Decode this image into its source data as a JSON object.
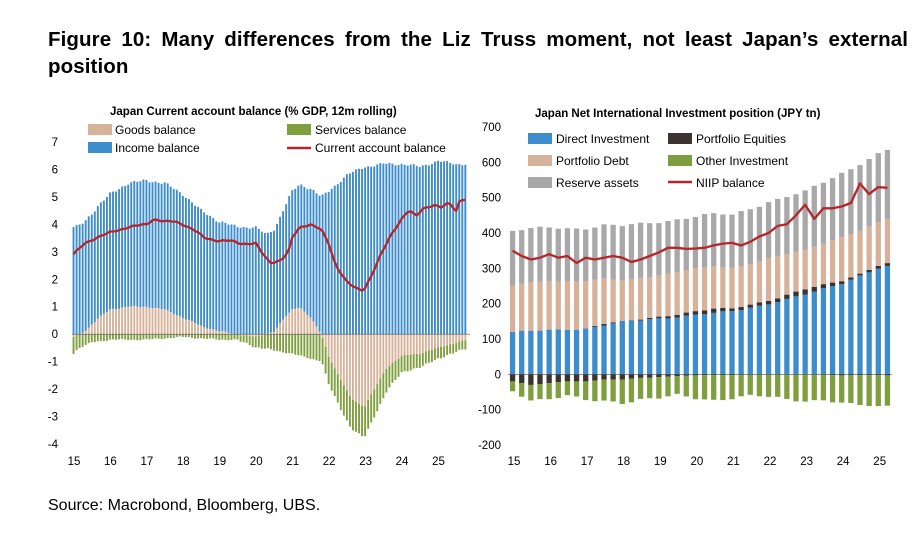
{
  "figure": {
    "title": "Figure 10: Many differences from the Liz Truss moment, not least Japan’s external position",
    "source": "Source: Macrobond, Bloomberg, UBS."
  },
  "chart_data": [
    {
      "type": "bar",
      "subtype": "stacked bar + line",
      "title": "Japan Current account balance (% GDP, 12m rolling)",
      "frequency": "monthly",
      "x_start": "2015-01",
      "x_end": "2025-10",
      "x_ticks": [
        "15",
        "16",
        "17",
        "18",
        "19",
        "20",
        "21",
        "22",
        "23",
        "24",
        "25"
      ],
      "ylim": [
        -4,
        7
      ],
      "y_ticks": [
        "-4",
        "-3",
        "-2",
        "-1",
        "0",
        "1",
        "2",
        "3",
        "4",
        "5",
        "6",
        "7"
      ],
      "legend": [
        "Goods balance",
        "Services balance",
        "Income balance",
        "Current account balance"
      ],
      "colors": {
        "goods": "#d7b29a",
        "services": "#7f9f3f",
        "income": "#3d8ccc",
        "current": "#b5252a"
      },
      "series_anchors": {
        "income": [
          [
            2015.0,
            3.9
          ],
          [
            2016.0,
            4.2
          ],
          [
            2016.5,
            4.5
          ],
          [
            2017.0,
            4.6
          ],
          [
            2017.5,
            4.6
          ],
          [
            2018.0,
            4.5
          ],
          [
            2018.5,
            4.2
          ],
          [
            2019.0,
            4.0
          ],
          [
            2019.5,
            3.9
          ],
          [
            2020.0,
            3.9
          ],
          [
            2020.3,
            3.6
          ],
          [
            2020.6,
            3.8
          ],
          [
            2021.0,
            4.3
          ],
          [
            2021.5,
            4.7
          ],
          [
            2022.0,
            5.2
          ],
          [
            2022.5,
            5.8
          ],
          [
            2023.0,
            6.1
          ],
          [
            2023.5,
            6.2
          ],
          [
            2024.0,
            6.2
          ],
          [
            2024.5,
            6.1
          ],
          [
            2025.0,
            6.3
          ],
          [
            2025.5,
            6.2
          ],
          [
            2025.83,
            6.2
          ]
        ],
        "goods": [
          [
            2015.0,
            -0.1
          ],
          [
            2015.3,
            0.1
          ],
          [
            2015.7,
            0.6
          ],
          [
            2016.0,
            0.9
          ],
          [
            2016.5,
            1.0
          ],
          [
            2017.0,
            1.0
          ],
          [
            2017.5,
            0.9
          ],
          [
            2018.0,
            0.6
          ],
          [
            2018.5,
            0.3
          ],
          [
            2019.0,
            0.1
          ],
          [
            2019.5,
            0.0
          ],
          [
            2020.0,
            -0.1
          ],
          [
            2020.5,
            0.1
          ],
          [
            2020.8,
            0.6
          ],
          [
            2021.0,
            0.9
          ],
          [
            2021.2,
            1.0
          ],
          [
            2021.5,
            0.6
          ],
          [
            2021.8,
            0.0
          ],
          [
            2022.0,
            -0.8
          ],
          [
            2022.3,
            -1.6
          ],
          [
            2022.6,
            -2.3
          ],
          [
            2022.9,
            -2.6
          ],
          [
            2023.0,
            -2.6
          ],
          [
            2023.3,
            -1.9
          ],
          [
            2023.6,
            -1.2
          ],
          [
            2024.0,
            -0.8
          ],
          [
            2024.5,
            -0.7
          ],
          [
            2025.0,
            -0.5
          ],
          [
            2025.5,
            -0.3
          ],
          [
            2025.83,
            -0.2
          ]
        ],
        "services": [
          [
            2015.0,
            -0.6
          ],
          [
            2015.5,
            -0.3
          ],
          [
            2016.0,
            -0.2
          ],
          [
            2017.0,
            -0.2
          ],
          [
            2018.0,
            -0.1
          ],
          [
            2019.0,
            -0.2
          ],
          [
            2019.5,
            -0.2
          ],
          [
            2020.0,
            -0.4
          ],
          [
            2020.5,
            -0.6
          ],
          [
            2021.0,
            -0.7
          ],
          [
            2021.5,
            -0.9
          ],
          [
            2022.0,
            -1.0
          ],
          [
            2022.5,
            -1.1
          ],
          [
            2023.0,
            -1.1
          ],
          [
            2023.5,
            -0.9
          ],
          [
            2024.0,
            -0.6
          ],
          [
            2024.5,
            -0.5
          ],
          [
            2025.0,
            -0.4
          ],
          [
            2025.83,
            -0.3
          ]
        ],
        "current": [
          [
            2015.0,
            2.9
          ],
          [
            2015.3,
            3.3
          ],
          [
            2015.6,
            3.5
          ],
          [
            2016.0,
            3.7
          ],
          [
            2016.5,
            3.9
          ],
          [
            2017.0,
            4.0
          ],
          [
            2017.2,
            4.2
          ],
          [
            2017.5,
            4.1
          ],
          [
            2017.8,
            4.1
          ],
          [
            2018.0,
            4.0
          ],
          [
            2018.3,
            3.8
          ],
          [
            2018.6,
            3.5
          ],
          [
            2019.0,
            3.4
          ],
          [
            2019.3,
            3.4
          ],
          [
            2019.6,
            3.3
          ],
          [
            2020.0,
            3.3
          ],
          [
            2020.2,
            2.9
          ],
          [
            2020.4,
            2.6
          ],
          [
            2020.7,
            2.7
          ],
          [
            2020.9,
            3.0
          ],
          [
            2021.0,
            3.5
          ],
          [
            2021.2,
            3.9
          ],
          [
            2021.5,
            4.0
          ],
          [
            2021.8,
            3.8
          ],
          [
            2022.0,
            3.3
          ],
          [
            2022.2,
            2.5
          ],
          [
            2022.5,
            1.9
          ],
          [
            2022.7,
            1.7
          ],
          [
            2022.9,
            1.6
          ],
          [
            2023.0,
            1.7
          ],
          [
            2023.2,
            2.2
          ],
          [
            2023.4,
            2.8
          ],
          [
            2023.7,
            3.6
          ],
          [
            2024.0,
            4.2
          ],
          [
            2024.2,
            4.5
          ],
          [
            2024.4,
            4.3
          ],
          [
            2024.6,
            4.6
          ],
          [
            2024.9,
            4.7
          ],
          [
            2025.1,
            4.6
          ],
          [
            2025.3,
            4.8
          ],
          [
            2025.5,
            4.5
          ],
          [
            2025.6,
            4.9
          ],
          [
            2025.83,
            4.9
          ]
        ]
      }
    },
    {
      "type": "bar",
      "subtype": "stacked bar + line",
      "title": "Japan Net International Investment position (JPY tn)",
      "frequency": "quarterly",
      "x_start": "2015-Q1",
      "x_end": "2025-Q2",
      "x_ticks": [
        "15",
        "16",
        "17",
        "18",
        "19",
        "20",
        "21",
        "22",
        "23",
        "24",
        "25"
      ],
      "ylim": [
        -200,
        700
      ],
      "y_ticks": [
        "-200",
        "-100",
        "0",
        "100",
        "200",
        "300",
        "400",
        "500",
        "600",
        "700"
      ],
      "legend": [
        "Direct Investment",
        "Portfolio Equities",
        "Portfolio Debt",
        "Other Investment",
        "Reserve assets",
        "NIIP balance"
      ],
      "colors": {
        "direct": "#3d8ccc",
        "equities": "#3b3330",
        "debt": "#d7b29a",
        "other": "#7f9f3f",
        "reserve": "#a8a8a8",
        "niip": "#b5252a"
      },
      "series_anchors": {
        "direct": [
          [
            2015.0,
            120
          ],
          [
            2016.0,
            125
          ],
          [
            2017.0,
            130
          ],
          [
            2018.0,
            148
          ],
          [
            2019.0,
            158
          ],
          [
            2020.0,
            168
          ],
          [
            2021.0,
            178
          ],
          [
            2022.0,
            200
          ],
          [
            2023.0,
            225
          ],
          [
            2024.0,
            258
          ],
          [
            2024.5,
            280
          ],
          [
            2025.0,
            300
          ],
          [
            2025.25,
            305
          ]
        ],
        "equities_pos": [
          [
            2015.0,
            0
          ],
          [
            2016.0,
            0
          ],
          [
            2017.0,
            0
          ],
          [
            2017.5,
            5
          ],
          [
            2018.0,
            0
          ],
          [
            2019.0,
            5
          ],
          [
            2019.5,
            8
          ],
          [
            2020.0,
            10
          ],
          [
            2020.5,
            12
          ],
          [
            2021.0,
            8
          ],
          [
            2022.0,
            10
          ],
          [
            2022.5,
            12
          ],
          [
            2023.0,
            15
          ],
          [
            2024.0,
            8
          ],
          [
            2024.5,
            5
          ],
          [
            2025.0,
            8
          ],
          [
            2025.25,
            8
          ]
        ],
        "equities_neg": [
          [
            2015.0,
            -20
          ],
          [
            2015.5,
            -30
          ],
          [
            2016.0,
            -25
          ],
          [
            2016.5,
            -20
          ],
          [
            2017.0,
            -20
          ],
          [
            2017.5,
            -15
          ],
          [
            2018.0,
            -15
          ],
          [
            2018.5,
            -10
          ],
          [
            2019.0,
            -8
          ],
          [
            2019.5,
            -5
          ],
          [
            2020.0,
            -3
          ],
          [
            2020.5,
            -2
          ],
          [
            2021.0,
            -2
          ],
          [
            2022.0,
            0
          ],
          [
            2023.0,
            0
          ],
          [
            2024.0,
            -3
          ],
          [
            2025.0,
            -2
          ],
          [
            2025.25,
            -3
          ]
        ],
        "debt": [
          [
            2015.0,
            130
          ],
          [
            2016.0,
            140
          ],
          [
            2017.0,
            135
          ],
          [
            2018.0,
            115
          ],
          [
            2019.0,
            120
          ],
          [
            2020.0,
            120
          ],
          [
            2021.0,
            115
          ],
          [
            2022.0,
            120
          ],
          [
            2023.0,
            110
          ],
          [
            2024.0,
            125
          ],
          [
            2025.0,
            120
          ],
          [
            2025.25,
            125
          ]
        ],
        "other": [
          [
            2015.0,
            -30
          ],
          [
            2015.5,
            -40
          ],
          [
            2016.0,
            -45
          ],
          [
            2016.5,
            -40
          ],
          [
            2017.0,
            -55
          ],
          [
            2017.5,
            -60
          ],
          [
            2018.0,
            -65
          ],
          [
            2018.5,
            -60
          ],
          [
            2019.0,
            -60
          ],
          [
            2019.5,
            -55
          ],
          [
            2020.0,
            -65
          ],
          [
            2020.5,
            -70
          ],
          [
            2021.0,
            -65
          ],
          [
            2021.5,
            -60
          ],
          [
            2022.0,
            -65
          ],
          [
            2022.5,
            -70
          ],
          [
            2023.0,
            -75
          ],
          [
            2023.5,
            -70
          ],
          [
            2024.0,
            -80
          ],
          [
            2024.5,
            -85
          ],
          [
            2025.0,
            -90
          ],
          [
            2025.25,
            -85
          ]
        ],
        "reserve": [
          [
            2015.0,
            155
          ],
          [
            2016.0,
            150
          ],
          [
            2017.0,
            150
          ],
          [
            2018.0,
            155
          ],
          [
            2019.0,
            150
          ],
          [
            2020.0,
            148
          ],
          [
            2021.0,
            150
          ],
          [
            2022.0,
            160
          ],
          [
            2023.0,
            165
          ],
          [
            2024.0,
            180
          ],
          [
            2024.5,
            190
          ],
          [
            2025.0,
            195
          ],
          [
            2025.25,
            195
          ]
        ],
        "niip": [
          [
            2015.0,
            350
          ],
          [
            2015.25,
            335
          ],
          [
            2015.5,
            325
          ],
          [
            2015.75,
            330
          ],
          [
            2016.0,
            340
          ],
          [
            2016.25,
            330
          ],
          [
            2016.5,
            335
          ],
          [
            2016.75,
            315
          ],
          [
            2017.0,
            330
          ],
          [
            2017.25,
            325
          ],
          [
            2017.5,
            330
          ],
          [
            2017.75,
            335
          ],
          [
            2018.0,
            330
          ],
          [
            2018.25,
            318
          ],
          [
            2018.5,
            325
          ],
          [
            2018.75,
            335
          ],
          [
            2019.0,
            345
          ],
          [
            2019.25,
            358
          ],
          [
            2019.5,
            358
          ],
          [
            2019.75,
            355
          ],
          [
            2020.0,
            356
          ],
          [
            2020.25,
            358
          ],
          [
            2020.5,
            365
          ],
          [
            2020.75,
            370
          ],
          [
            2021.0,
            372
          ],
          [
            2021.25,
            365
          ],
          [
            2021.5,
            375
          ],
          [
            2021.75,
            390
          ],
          [
            2022.0,
            400
          ],
          [
            2022.25,
            420
          ],
          [
            2022.5,
            425
          ],
          [
            2022.75,
            450
          ],
          [
            2023.0,
            480
          ],
          [
            2023.25,
            440
          ],
          [
            2023.5,
            470
          ],
          [
            2023.75,
            470
          ],
          [
            2024.0,
            475
          ],
          [
            2024.25,
            485
          ],
          [
            2024.5,
            540
          ],
          [
            2024.75,
            510
          ],
          [
            2025.0,
            530
          ],
          [
            2025.25,
            528
          ]
        ]
      }
    }
  ]
}
